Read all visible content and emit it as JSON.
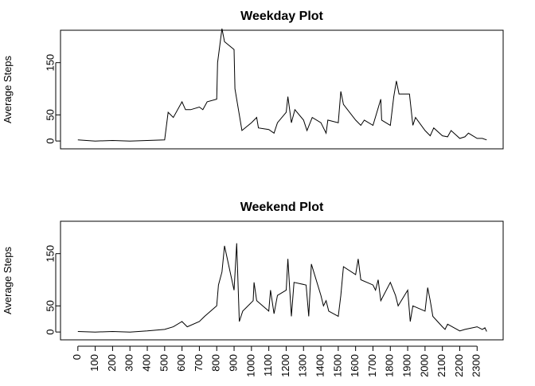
{
  "chart_data": [
    {
      "type": "line",
      "title": "Weekday Plot",
      "ylabel": "Average Steps",
      "x": [
        0,
        100,
        200,
        300,
        400,
        500,
        520,
        550,
        600,
        620,
        650,
        700,
        720,
        745,
        800,
        805,
        830,
        845,
        900,
        905,
        930,
        945,
        1000,
        1030,
        1040,
        1100,
        1130,
        1150,
        1200,
        1210,
        1230,
        1250,
        1300,
        1320,
        1350,
        1400,
        1430,
        1440,
        1500,
        1515,
        1530,
        1600,
        1630,
        1650,
        1700,
        1745,
        1750,
        1800,
        1820,
        1835,
        1850,
        1910,
        1930,
        1945,
        2000,
        2030,
        2050,
        2100,
        2130,
        2150,
        2200,
        2230,
        2250,
        2300,
        2330,
        2355
      ],
      "series": [
        {
          "name": "Weekday",
          "color": "#000000",
          "values": [
            2,
            0,
            1,
            0,
            1,
            2,
            55,
            45,
            75,
            60,
            60,
            65,
            60,
            75,
            80,
            150,
            215,
            190,
            175,
            100,
            50,
            20,
            35,
            45,
            25,
            22,
            15,
            35,
            55,
            85,
            35,
            60,
            40,
            20,
            45,
            35,
            15,
            40,
            35,
            95,
            70,
            40,
            30,
            40,
            30,
            80,
            40,
            30,
            85,
            115,
            90,
            90,
            30,
            45,
            20,
            10,
            25,
            10,
            8,
            20,
            5,
            8,
            15,
            5,
            5,
            2
          ]
        }
      ],
      "xlim": [
        -100,
        2450
      ],
      "ylim": [
        -15,
        212
      ],
      "yticks": [
        0,
        50,
        150
      ]
    },
    {
      "type": "line",
      "title": "Weekend Plot",
      "ylabel": "Average Steps",
      "x": [
        0,
        100,
        200,
        300,
        400,
        500,
        550,
        600,
        630,
        700,
        730,
        800,
        810,
        830,
        845,
        900,
        915,
        930,
        950,
        1010,
        1015,
        1030,
        1100,
        1110,
        1130,
        1150,
        1200,
        1210,
        1230,
        1245,
        1315,
        1330,
        1345,
        1400,
        1415,
        1430,
        1445,
        1500,
        1515,
        1530,
        1600,
        1615,
        1630,
        1700,
        1715,
        1730,
        1745,
        1800,
        1830,
        1845,
        1900,
        1915,
        1930,
        2000,
        2015,
        2030,
        2045,
        2100,
        2115,
        2130,
        2200,
        2230,
        2300,
        2330,
        2345,
        2355
      ],
      "series": [
        {
          "name": "Weekend",
          "color": "#000000",
          "values": [
            1,
            0,
            1,
            0,
            2,
            5,
            10,
            20,
            10,
            20,
            30,
            50,
            90,
            115,
            165,
            80,
            170,
            20,
            40,
            60,
            95,
            60,
            40,
            80,
            35,
            70,
            80,
            140,
            30,
            95,
            90,
            30,
            130,
            70,
            50,
            60,
            40,
            30,
            70,
            125,
            110,
            140,
            100,
            90,
            80,
            100,
            60,
            95,
            70,
            50,
            80,
            20,
            50,
            40,
            85,
            60,
            30,
            10,
            5,
            15,
            2,
            5,
            10,
            5,
            8,
            1
          ]
        }
      ],
      "xlim": [
        -100,
        2450
      ],
      "ylim": [
        -15,
        212
      ],
      "yticks": [
        0,
        50,
        150
      ],
      "xticks": [
        0,
        100,
        200,
        300,
        400,
        500,
        600,
        700,
        800,
        900,
        1000,
        1100,
        1200,
        1300,
        1400,
        1500,
        1600,
        1700,
        1800,
        1900,
        2000,
        2100,
        2200,
        2300
      ]
    }
  ]
}
